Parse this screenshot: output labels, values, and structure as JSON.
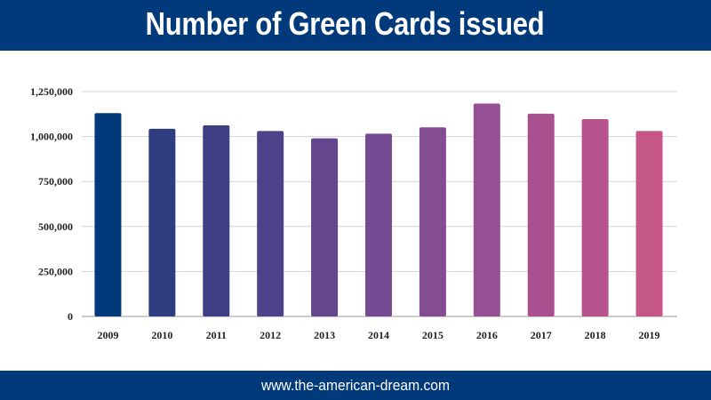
{
  "header": {
    "title": "Number of Green Cards issued"
  },
  "footer": {
    "text": "www.the-american-dream.com"
  },
  "colors": {
    "bar_bg": "#003a7a"
  },
  "chart_data": {
    "type": "bar",
    "title": "Number of Green Cards issued",
    "xlabel": "",
    "ylabel": "",
    "categories": [
      "2009",
      "2010",
      "2011",
      "2012",
      "2013",
      "2014",
      "2015",
      "2016",
      "2017",
      "2018",
      "2019"
    ],
    "values": [
      1130000,
      1043000,
      1062000,
      1031000,
      990000,
      1016000,
      1051000,
      1183000,
      1127000,
      1097000,
      1031000
    ],
    "bar_colors": [
      "#003a7a",
      "#2d3d80",
      "#3f3f85",
      "#4e428a",
      "#64468f",
      "#744a92",
      "#844c93",
      "#964f92",
      "#a9508f",
      "#b7528c",
      "#c55688"
    ],
    "ylim": [
      0,
      1250000
    ],
    "yticks": [
      0,
      250000,
      500000,
      750000,
      1000000,
      1250000
    ],
    "ytick_labels": [
      "0",
      "250,000",
      "500,000",
      "750,000",
      "1,000,000",
      "1,250,000"
    ],
    "grid": true,
    "legend": "none"
  }
}
